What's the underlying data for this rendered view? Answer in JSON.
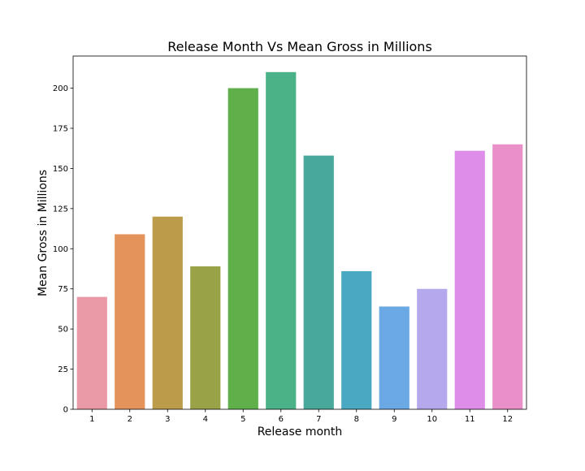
{
  "chart_data": {
    "type": "bar",
    "title": "Release Month Vs Mean Gross in Millions",
    "xlabel": "Release month",
    "ylabel": "Mean Gross in Millions",
    "categories": [
      "1",
      "2",
      "3",
      "4",
      "5",
      "6",
      "7",
      "8",
      "9",
      "10",
      "11",
      "12"
    ],
    "values": [
      70,
      109,
      120,
      89,
      200,
      210,
      158,
      86,
      64,
      75,
      161,
      165
    ],
    "colors": [
      "#e99aa6",
      "#e4935a",
      "#ba9c4a",
      "#99a246",
      "#5fb04b",
      "#4bb287",
      "#48a89b",
      "#4aa9c2",
      "#6aa9e4",
      "#b5a8ec",
      "#de8ee8",
      "#e990c8"
    ],
    "ylim": [
      0,
      220
    ],
    "yticks": [
      0,
      25,
      50,
      75,
      100,
      125,
      150,
      175,
      200
    ],
    "grid": false,
    "legend": "none"
  }
}
